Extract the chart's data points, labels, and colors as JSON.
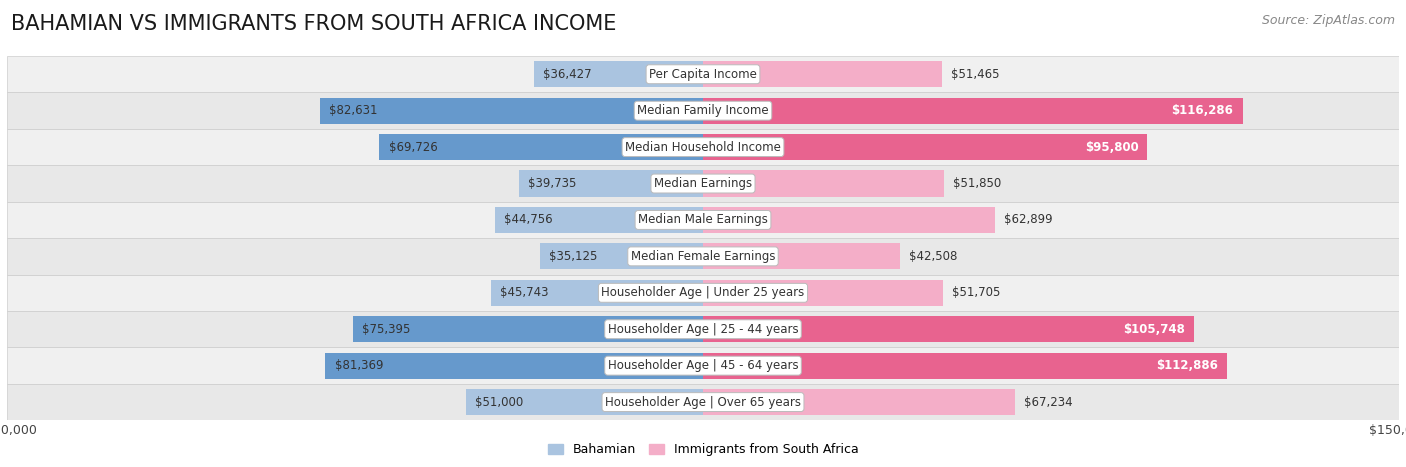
{
  "title": "BAHAMIAN VS IMMIGRANTS FROM SOUTH AFRICA INCOME",
  "source": "Source: ZipAtlas.com",
  "categories": [
    "Per Capita Income",
    "Median Family Income",
    "Median Household Income",
    "Median Earnings",
    "Median Male Earnings",
    "Median Female Earnings",
    "Householder Age | Under 25 years",
    "Householder Age | 25 - 44 years",
    "Householder Age | 45 - 64 years",
    "Householder Age | Over 65 years"
  ],
  "bahamian": [
    36427,
    82631,
    69726,
    39735,
    44756,
    35125,
    45743,
    75395,
    81369,
    51000
  ],
  "immigrants": [
    51465,
    116286,
    95800,
    51850,
    62899,
    42508,
    51705,
    105748,
    112886,
    67234
  ],
  "bahamian_color_light": "#aac4e0",
  "bahamian_color_dark": "#6699cc",
  "immigrants_color_light": "#f4aec8",
  "immigrants_color_dark": "#e8638f",
  "bar_height": 0.72,
  "xlim": 150000,
  "row_colors": [
    "#f0f0f0",
    "#e8e8e8"
  ],
  "label_color_dark": "#333333",
  "label_color_white": "#ffffff",
  "center_box_color": "#ffffff",
  "center_box_border": "#bbbbbb",
  "title_fontsize": 15,
  "label_fontsize": 8.5,
  "category_fontsize": 8.5,
  "legend_fontsize": 9,
  "source_fontsize": 9,
  "white_label_threshold": 0.55
}
